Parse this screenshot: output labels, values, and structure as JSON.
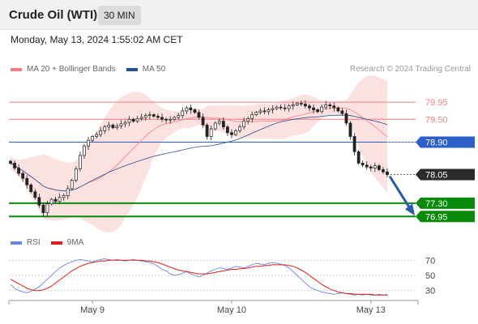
{
  "header": {
    "title": "Crude Oil (WTI)",
    "timeframe": "30 MIN"
  },
  "timestamp": "Monday, May 13, 2024 1:55:02 AM CET",
  "legend": {
    "items": [
      {
        "label": "MA 20 + Bollinger Bands",
        "color": "#f08080"
      },
      {
        "label": "MA 50",
        "color": "#2a4f8f"
      }
    ],
    "copyright": "Research © 2024 Trading Central"
  },
  "rsi_legend": {
    "items": [
      {
        "label": "RSI",
        "color": "#6a86d8"
      },
      {
        "label": "9MA",
        "color": "#dd1f1f"
      }
    ]
  },
  "levels": [
    {
      "value": 79.95,
      "label": "79.95",
      "kind": "resistance"
    },
    {
      "value": 79.5,
      "label": "79.50",
      "kind": "resistance"
    },
    {
      "value": 78.9,
      "label": "78.90",
      "kind": "pivot"
    },
    {
      "value": 78.05,
      "label": "78.05",
      "kind": "last"
    },
    {
      "value": 77.3,
      "label": "77.30",
      "kind": "support"
    },
    {
      "value": 76.95,
      "label": "76.95",
      "kind": "support"
    }
  ],
  "colors": {
    "resistance": "#f08080",
    "pivot": "#2d5fc8",
    "support": "#0a8a0a",
    "last": "#2b2b2b",
    "up_candle": "#ffffff",
    "down_candle": "#222222",
    "band_fill": "#fbdcdc",
    "arrow": "#2a5aa8"
  },
  "chart_data": [
    {
      "type": "candlestick",
      "ylim": [
        76.85,
        80.25
      ],
      "xtick_labels": [
        "May 9",
        "May 10",
        "May 13"
      ],
      "xtick_index": [
        20,
        54,
        88
      ],
      "closes": [
        78.35,
        78.22,
        78.08,
        77.95,
        77.78,
        77.6,
        77.45,
        77.25,
        77.05,
        77.28,
        77.4,
        77.35,
        77.45,
        77.5,
        77.68,
        77.9,
        78.2,
        78.55,
        78.8,
        78.95,
        79.05,
        79.1,
        79.2,
        79.3,
        79.35,
        79.28,
        79.32,
        79.38,
        79.42,
        79.5,
        79.45,
        79.52,
        79.55,
        79.6,
        79.62,
        79.58,
        79.55,
        79.5,
        79.48,
        79.5,
        79.55,
        79.6,
        79.72,
        79.8,
        79.75,
        79.68,
        79.55,
        79.35,
        79.05,
        79.25,
        79.4,
        79.45,
        79.3,
        79.15,
        79.1,
        79.2,
        79.3,
        79.45,
        79.52,
        79.62,
        79.68,
        79.72,
        79.7,
        79.75,
        79.78,
        79.82,
        79.8,
        79.78,
        79.85,
        79.88,
        79.92,
        79.9,
        79.85,
        79.8,
        79.75,
        79.7,
        79.82,
        79.88,
        79.85,
        79.8,
        79.72,
        79.65,
        79.4,
        79.05,
        78.65,
        78.35,
        78.3,
        78.25,
        78.22,
        78.28,
        78.18,
        78.12,
        78.05
      ]
    },
    {
      "type": "line",
      "name": "RSI",
      "yticks": [
        70,
        50,
        30
      ],
      "ylim": [
        20,
        80
      ],
      "rsi": [
        38,
        33,
        30,
        28,
        27,
        29,
        32,
        35,
        40,
        45,
        50,
        55,
        60,
        63,
        66,
        68,
        70,
        71,
        70,
        69,
        68,
        70,
        71,
        72,
        71,
        70,
        71,
        70,
        69,
        70,
        71,
        70,
        69,
        68,
        67,
        65,
        62,
        58,
        56,
        52,
        50,
        51,
        53,
        55,
        52,
        50,
        48,
        50,
        53,
        56,
        58,
        60,
        59,
        58,
        60,
        62,
        61,
        60,
        62,
        64,
        66,
        65,
        64,
        66,
        67,
        66,
        65,
        63,
        60,
        55,
        50,
        45,
        40,
        35,
        32,
        30,
        28,
        27,
        26,
        25,
        26,
        27,
        26,
        25,
        24,
        25,
        24,
        25,
        24,
        24,
        25,
        24,
        25
      ],
      "ma9": [
        45,
        42,
        39,
        36,
        33,
        31,
        30,
        30,
        31,
        33,
        36,
        40,
        44,
        48,
        52,
        56,
        59,
        62,
        64,
        66,
        67,
        68,
        69,
        69,
        70,
        70,
        70,
        70,
        70,
        70,
        70,
        70,
        70,
        69,
        69,
        68,
        67,
        65,
        63,
        61,
        59,
        57,
        56,
        55,
        54,
        53,
        52,
        52,
        52,
        53,
        54,
        55,
        56,
        57,
        58,
        58,
        59,
        59,
        60,
        61,
        62,
        62,
        63,
        63,
        64,
        64,
        64,
        64,
        63,
        62,
        60,
        57,
        54,
        50,
        46,
        42,
        38,
        35,
        32,
        30,
        28,
        27,
        26,
        26,
        25,
        25,
        25,
        25,
        25,
        24,
        24,
        24,
        24
      ]
    }
  ]
}
